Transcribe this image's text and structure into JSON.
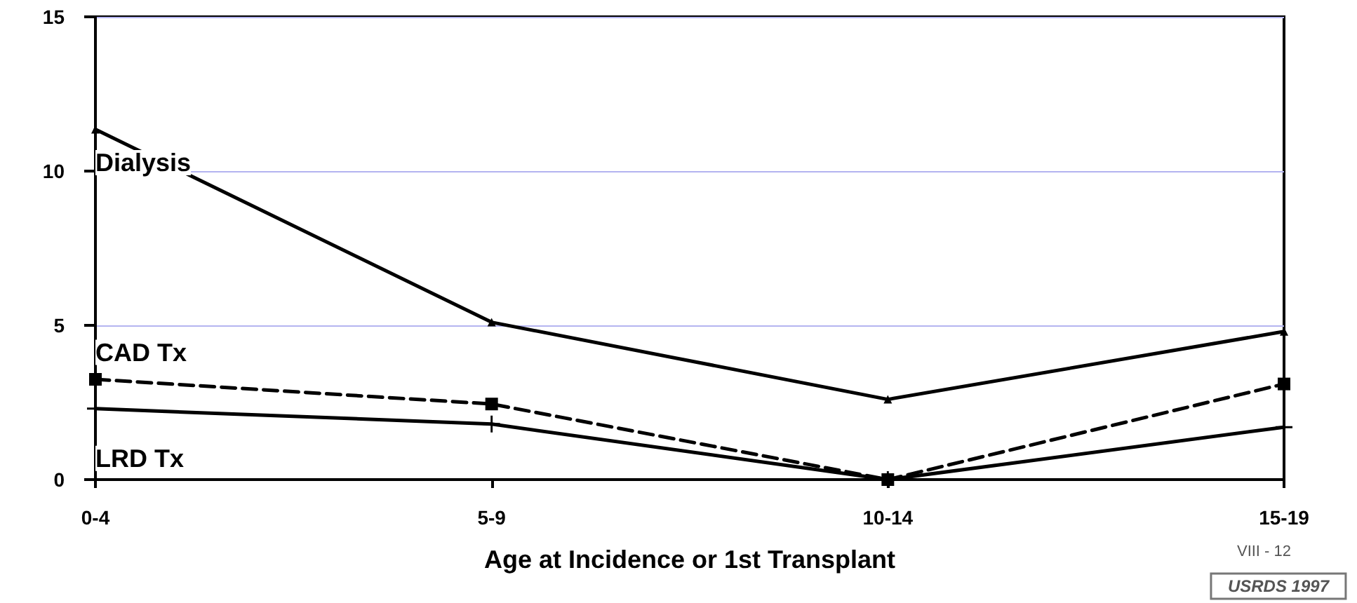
{
  "chart_data": {
    "type": "line",
    "xlabel": "Age at Incidence or 1st Transplant",
    "categories": [
      "0-4",
      "5-9",
      "10-14",
      "15-19"
    ],
    "series": [
      {
        "name": "Dialysis",
        "color": "#000000",
        "values": [
          11.35,
          5.1,
          2.6,
          4.8
        ],
        "marker": "triangle",
        "line_style": "solid"
      },
      {
        "name": "CAD Tx",
        "color": "#000000",
        "values": [
          3.25,
          2.45,
          0,
          3.1
        ],
        "marker": "square",
        "line_style": "dashed"
      },
      {
        "name": "LRD Tx",
        "color": "#000000",
        "values": [
          2.3,
          1.8,
          0,
          1.7
        ],
        "marker": "cross",
        "line_style": "solid"
      }
    ],
    "ylim": [
      0,
      15
    ],
    "yticks": [
      0,
      5,
      10,
      15
    ],
    "grid": "y",
    "legend": false,
    "annotations": [
      "VIII - 12",
      "USRDS 1997"
    ]
  }
}
